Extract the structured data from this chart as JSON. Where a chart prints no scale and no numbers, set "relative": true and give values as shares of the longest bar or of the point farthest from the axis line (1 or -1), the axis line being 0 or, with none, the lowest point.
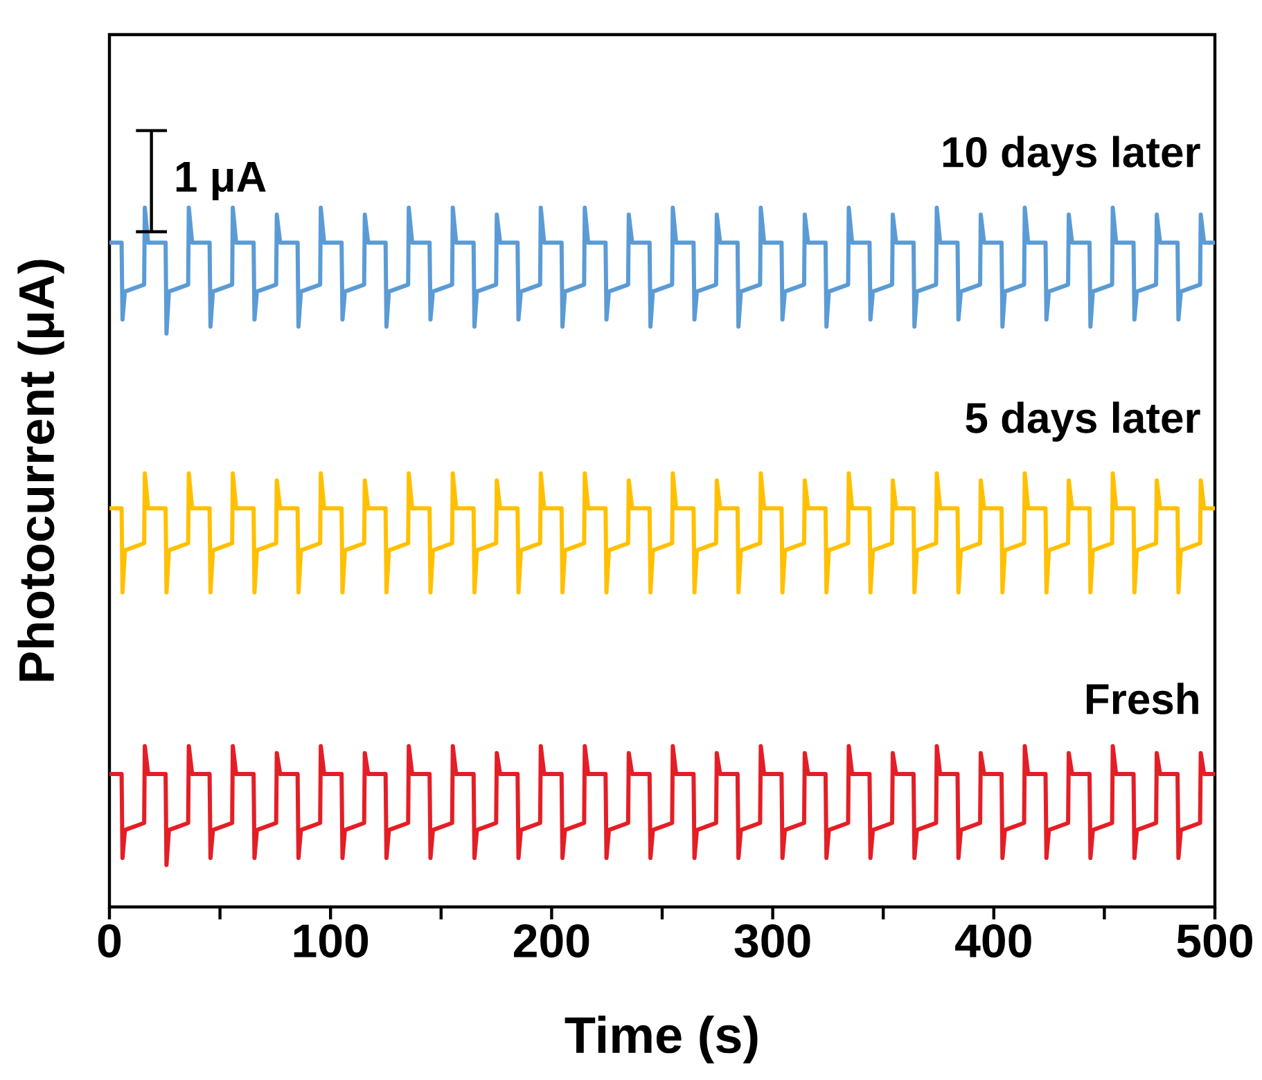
{
  "chart_data": {
    "type": "line",
    "relative": true,
    "xlabel": "Time (s)",
    "ylabel": "Photocurrent (μA)",
    "annotations": [
      "1 μA"
    ],
    "legend": false,
    "grid": false,
    "xlim": [
      0,
      500
    ],
    "xticks": [
      0,
      {
        "value": 50,
        "label": null
      },
      100,
      {
        "value": 150,
        "label": null
      },
      200,
      {
        "value": 250,
        "label": null
      },
      300,
      {
        "value": 350,
        "label": null
      },
      400,
      {
        "value": 450,
        "label": null
      },
      500
    ],
    "x": [
      0,
      5.5,
      5.9,
      7.0,
      15.7,
      16.0,
      17.5,
      25.4,
      25.8,
      26.9,
      35.6,
      35.9,
      37.4,
      45.3,
      45.7,
      46.8,
      55.5,
      55.8,
      57.3,
      65.2,
      65.6,
      66.7,
      75.4,
      75.7,
      77.2,
      85.1,
      85.5,
      86.6,
      95.3,
      95.6,
      97.1,
      105.0,
      105.4,
      106.5,
      115.2,
      115.5,
      117.0,
      124.9,
      125.3,
      126.4,
      135.1,
      135.4,
      136.9,
      144.8,
      145.2,
      146.3,
      155.0,
      155.3,
      156.8,
      164.7,
      165.1,
      166.2,
      174.9,
      175.2,
      176.7,
      184.6,
      185.0,
      186.1,
      194.8,
      195.1,
      196.6,
      204.5,
      204.9,
      206.0,
      214.7,
      215.0,
      216.5,
      224.4,
      224.8,
      225.9,
      234.6,
      234.9,
      236.4,
      244.3,
      244.7,
      245.8,
      254.5,
      254.8,
      256.3,
      264.2,
      264.6,
      265.7,
      274.4,
      274.7,
      276.2,
      284.1,
      284.5,
      285.6,
      294.3,
      294.6,
      296.1,
      304.0,
      304.4,
      305.5,
      314.2,
      314.5,
      316.0,
      323.9,
      324.3,
      325.4,
      334.1,
      334.4,
      335.9,
      343.8,
      344.2,
      345.3,
      354.0,
      354.3,
      355.8,
      363.7,
      364.1,
      365.2,
      373.9,
      374.2,
      375.7,
      383.6,
      384.0,
      385.1,
      393.8,
      394.1,
      395.6,
      403.5,
      403.9,
      405.0,
      413.7,
      414.0,
      415.5,
      423.4,
      423.8,
      424.9,
      433.6,
      433.9,
      435.4,
      443.3,
      443.7,
      444.8,
      453.5,
      453.8,
      455.3,
      463.2,
      463.6,
      464.7,
      473.4,
      473.7,
      475.2,
      483.1,
      483.5,
      484.6,
      493.3,
      493.6,
      495.1,
      500
    ],
    "series": [
      {
        "name": "10 days later",
        "color": "#5b9bd5",
        "values": [
          0.95,
          0.95,
          0.84,
          0.88,
          0.89,
          1.0,
          0.95,
          0.95,
          0.82,
          0.88,
          0.89,
          1.0,
          0.95,
          0.95,
          0.83,
          0.88,
          0.89,
          1.0,
          0.95,
          0.95,
          0.84,
          0.88,
          0.89,
          0.99,
          0.95,
          0.95,
          0.83,
          0.88,
          0.89,
          1.0,
          0.95,
          0.95,
          0.84,
          0.88,
          0.89,
          0.99,
          0.95,
          0.95,
          0.83,
          0.88,
          0.89,
          1.0,
          0.95,
          0.95,
          0.84,
          0.88,
          0.89,
          1.0,
          0.95,
          0.95,
          0.83,
          0.88,
          0.89,
          0.99,
          0.95,
          0.95,
          0.84,
          0.88,
          0.89,
          1.0,
          0.95,
          0.95,
          0.83,
          0.88,
          0.89,
          1.0,
          0.95,
          0.95,
          0.84,
          0.88,
          0.89,
          0.99,
          0.95,
          0.95,
          0.83,
          0.88,
          0.89,
          1.0,
          0.95,
          0.95,
          0.84,
          0.88,
          0.89,
          0.99,
          0.95,
          0.95,
          0.83,
          0.88,
          0.89,
          1.0,
          0.95,
          0.95,
          0.84,
          0.88,
          0.89,
          0.99,
          0.95,
          0.95,
          0.83,
          0.88,
          0.89,
          1.0,
          0.95,
          0.95,
          0.84,
          0.88,
          0.89,
          0.99,
          0.95,
          0.95,
          0.83,
          0.88,
          0.89,
          1.0,
          0.95,
          0.95,
          0.84,
          0.88,
          0.89,
          0.99,
          0.95,
          0.95,
          0.83,
          0.88,
          0.89,
          1.0,
          0.95,
          0.95,
          0.84,
          0.88,
          0.89,
          0.99,
          0.95,
          0.95,
          0.83,
          0.88,
          0.89,
          1.0,
          0.95,
          0.95,
          0.84,
          0.88,
          0.89,
          0.99,
          0.95,
          0.95,
          0.84,
          0.88,
          0.89,
          0.99,
          0.95,
          0.95
        ]
      },
      {
        "name": "5 days later",
        "color": "#ffc000",
        "values": [
          0.57,
          0.57,
          0.45,
          0.51,
          0.52,
          0.62,
          0.57,
          0.57,
          0.45,
          0.51,
          0.52,
          0.62,
          0.57,
          0.57,
          0.45,
          0.51,
          0.52,
          0.62,
          0.57,
          0.57,
          0.45,
          0.51,
          0.52,
          0.61,
          0.57,
          0.57,
          0.45,
          0.51,
          0.52,
          0.62,
          0.57,
          0.57,
          0.45,
          0.51,
          0.52,
          0.61,
          0.57,
          0.57,
          0.45,
          0.51,
          0.52,
          0.62,
          0.57,
          0.57,
          0.45,
          0.51,
          0.52,
          0.62,
          0.57,
          0.57,
          0.45,
          0.51,
          0.52,
          0.61,
          0.57,
          0.57,
          0.45,
          0.51,
          0.52,
          0.62,
          0.57,
          0.57,
          0.45,
          0.51,
          0.52,
          0.62,
          0.57,
          0.57,
          0.45,
          0.51,
          0.52,
          0.61,
          0.57,
          0.57,
          0.45,
          0.51,
          0.52,
          0.62,
          0.57,
          0.57,
          0.45,
          0.51,
          0.52,
          0.61,
          0.57,
          0.57,
          0.45,
          0.51,
          0.52,
          0.62,
          0.57,
          0.57,
          0.45,
          0.51,
          0.52,
          0.61,
          0.57,
          0.57,
          0.45,
          0.51,
          0.52,
          0.62,
          0.57,
          0.57,
          0.45,
          0.51,
          0.52,
          0.61,
          0.57,
          0.57,
          0.45,
          0.51,
          0.52,
          0.62,
          0.57,
          0.57,
          0.45,
          0.51,
          0.52,
          0.61,
          0.57,
          0.57,
          0.45,
          0.51,
          0.52,
          0.62,
          0.57,
          0.57,
          0.45,
          0.51,
          0.52,
          0.61,
          0.57,
          0.57,
          0.45,
          0.51,
          0.52,
          0.62,
          0.57,
          0.57,
          0.45,
          0.51,
          0.52,
          0.61,
          0.57,
          0.57,
          0.45,
          0.51,
          0.52,
          0.61,
          0.57,
          0.57
        ]
      },
      {
        "name": "Fresh",
        "color": "#e41e26",
        "values": [
          0.19,
          0.19,
          0.07,
          0.11,
          0.12,
          0.23,
          0.19,
          0.19,
          0.06,
          0.11,
          0.12,
          0.23,
          0.19,
          0.19,
          0.07,
          0.11,
          0.12,
          0.23,
          0.19,
          0.19,
          0.07,
          0.11,
          0.12,
          0.22,
          0.19,
          0.19,
          0.07,
          0.11,
          0.12,
          0.23,
          0.19,
          0.19,
          0.07,
          0.11,
          0.12,
          0.22,
          0.19,
          0.19,
          0.07,
          0.11,
          0.12,
          0.23,
          0.19,
          0.19,
          0.07,
          0.11,
          0.12,
          0.23,
          0.19,
          0.19,
          0.07,
          0.11,
          0.12,
          0.22,
          0.19,
          0.19,
          0.07,
          0.11,
          0.12,
          0.23,
          0.19,
          0.19,
          0.07,
          0.11,
          0.12,
          0.23,
          0.19,
          0.19,
          0.07,
          0.11,
          0.12,
          0.22,
          0.19,
          0.19,
          0.07,
          0.11,
          0.12,
          0.23,
          0.19,
          0.19,
          0.07,
          0.11,
          0.12,
          0.22,
          0.19,
          0.19,
          0.07,
          0.11,
          0.12,
          0.23,
          0.19,
          0.19,
          0.07,
          0.11,
          0.12,
          0.22,
          0.19,
          0.19,
          0.07,
          0.11,
          0.12,
          0.23,
          0.19,
          0.19,
          0.07,
          0.11,
          0.12,
          0.22,
          0.19,
          0.19,
          0.07,
          0.11,
          0.12,
          0.23,
          0.19,
          0.19,
          0.07,
          0.11,
          0.12,
          0.22,
          0.19,
          0.19,
          0.07,
          0.11,
          0.12,
          0.23,
          0.19,
          0.19,
          0.07,
          0.11,
          0.12,
          0.22,
          0.19,
          0.19,
          0.07,
          0.11,
          0.12,
          0.23,
          0.19,
          0.19,
          0.07,
          0.11,
          0.12,
          0.22,
          0.19,
          0.19,
          0.07,
          0.11,
          0.12,
          0.22,
          0.19,
          0.19
        ]
      }
    ]
  }
}
